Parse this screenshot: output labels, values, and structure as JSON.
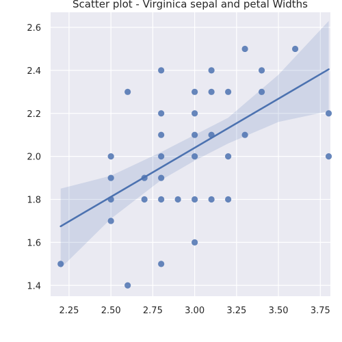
{
  "chart_data": {
    "type": "scatter",
    "title": "Scatter plot - Virginica sepal and petal Widths",
    "xlabel": "",
    "ylabel": "",
    "xlim": [
      2.14,
      3.81
    ],
    "ylim": [
      1.35,
      2.67
    ],
    "x_ticks": [
      2.25,
      2.5,
      2.75,
      3.0,
      3.25,
      3.5,
      3.75
    ],
    "x_tick_labels": [
      "2.25",
      "2.50",
      "2.75",
      "3.00",
      "3.25",
      "3.50",
      "3.75"
    ],
    "y_ticks": [
      1.4,
      1.6,
      1.8,
      2.0,
      2.2,
      2.4,
      2.6
    ],
    "y_tick_labels": [
      "1.4",
      "1.6",
      "1.8",
      "2.0",
      "2.2",
      "2.4",
      "2.6"
    ],
    "grid": true,
    "background": "#eaeaf2",
    "point_color": "#4c72b0",
    "line_color": "#4c72b0",
    "band_color": "#4c72b0",
    "series": [
      {
        "points": [
          [
            2.2,
            1.5
          ],
          [
            2.5,
            2.0
          ],
          [
            2.5,
            1.9
          ],
          [
            2.5,
            1.8
          ],
          [
            2.5,
            1.7
          ],
          [
            2.6,
            2.3
          ],
          [
            2.6,
            1.4
          ],
          [
            2.7,
            1.9
          ],
          [
            2.7,
            1.8
          ],
          [
            2.8,
            2.4
          ],
          [
            2.8,
            2.2
          ],
          [
            2.8,
            2.1
          ],
          [
            2.8,
            2.0
          ],
          [
            2.8,
            1.9
          ],
          [
            2.8,
            1.8
          ],
          [
            2.8,
            1.5
          ],
          [
            2.9,
            1.8
          ],
          [
            3.0,
            2.3
          ],
          [
            3.0,
            2.2
          ],
          [
            3.0,
            2.1
          ],
          [
            3.0,
            2.0
          ],
          [
            3.0,
            1.8
          ],
          [
            3.0,
            1.6
          ],
          [
            3.1,
            2.4
          ],
          [
            3.1,
            2.3
          ],
          [
            3.1,
            2.1
          ],
          [
            3.1,
            1.8
          ],
          [
            3.2,
            2.3
          ],
          [
            3.2,
            2.0
          ],
          [
            3.2,
            1.8
          ],
          [
            3.3,
            2.5
          ],
          [
            3.3,
            2.1
          ],
          [
            3.4,
            2.4
          ],
          [
            3.4,
            2.3
          ],
          [
            3.6,
            2.5
          ],
          [
            3.8,
            2.2
          ],
          [
            3.8,
            2.0
          ]
        ],
        "regression": {
          "x_start": 2.2,
          "y_start": 1.675,
          "x_end": 3.8,
          "y_end": 2.405
        },
        "confidence_band": {
          "x": [
            2.2,
            2.5,
            2.8,
            3.0,
            3.2,
            3.5,
            3.8
          ],
          "upper": [
            1.85,
            1.91,
            2.02,
            2.1,
            2.18,
            2.38,
            2.63
          ],
          "lower": [
            1.48,
            1.71,
            1.89,
            1.98,
            2.06,
            2.16,
            2.21
          ]
        }
      }
    ]
  }
}
